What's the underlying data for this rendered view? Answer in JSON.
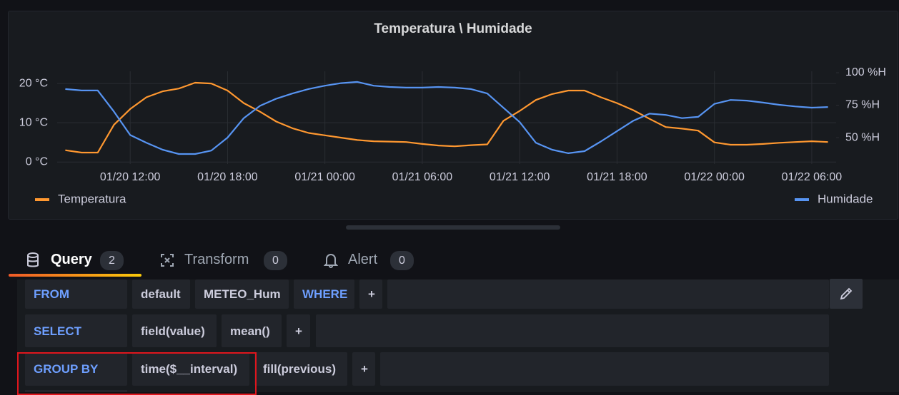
{
  "chart_data": {
    "type": "line",
    "title": "Temperatura \\ Humidade",
    "step": false,
    "x": [
      "01/20 08:00",
      "01/20 09:00",
      "01/20 10:00",
      "01/20 11:00",
      "01/20 12:00",
      "01/20 13:00",
      "01/20 14:00",
      "01/20 15:00",
      "01/20 16:00",
      "01/20 17:00",
      "01/20 18:00",
      "01/20 19:00",
      "01/20 20:00",
      "01/20 21:00",
      "01/20 22:00",
      "01/20 23:00",
      "01/21 00:00",
      "01/21 01:00",
      "01/21 02:00",
      "01/21 03:00",
      "01/21 04:00",
      "01/21 05:00",
      "01/21 06:00",
      "01/21 07:00",
      "01/21 08:00",
      "01/21 09:00",
      "01/21 10:00",
      "01/21 11:00",
      "01/21 12:00",
      "01/21 13:00",
      "01/21 14:00",
      "01/21 15:00",
      "01/21 16:00",
      "01/21 17:00",
      "01/21 18:00",
      "01/21 19:00",
      "01/21 20:00",
      "01/21 21:00",
      "01/21 22:00",
      "01/21 23:00",
      "01/22 00:00",
      "01/22 01:00",
      "01/22 02:00",
      "01/22 03:00",
      "01/22 04:00",
      "01/22 05:00",
      "01/22 06:00",
      "01/22 07:00"
    ],
    "series": [
      {
        "name": "Temperatura",
        "color": "#ff9830",
        "axis": "y",
        "values": [
          3.0,
          2.4,
          2.4,
          9.5,
          13.5,
          16.5,
          18,
          18.7,
          20.2,
          20,
          18.2,
          15,
          12.8,
          10.3,
          8.6,
          7.4,
          6.8,
          6.2,
          5.6,
          5.3,
          5.2,
          5.1,
          4.6,
          4.2,
          4.0,
          4.3,
          4.5,
          10.5,
          13,
          15.8,
          17.3,
          18.2,
          18.2,
          16.5,
          15,
          13.2,
          11,
          8.9,
          8.5,
          8,
          5,
          4.4,
          4.4,
          4.6,
          4.9,
          5.1,
          5.3,
          5.1
        ]
      },
      {
        "name": "Humidade",
        "color": "#5794f2",
        "axis": "y2",
        "values": [
          87.4,
          86.3,
          86.3,
          70,
          52,
          46,
          40.7,
          37.4,
          37.4,
          40,
          50,
          65,
          74.5,
          80,
          84,
          87.5,
          90,
          92,
          92.9,
          90,
          89,
          88.5,
          88.5,
          89,
          88.5,
          87.4,
          84,
          73,
          62,
          46,
          40.7,
          38,
          39.6,
          47,
          55,
          63,
          68.5,
          67.5,
          65,
          66,
          76,
          79,
          78.5,
          77,
          75.3,
          74,
          73.1,
          73.6
        ]
      }
    ],
    "xlim": [
      "01/20 07:30",
      "01/22 07:30"
    ],
    "xticks": [
      "01/20 12:00",
      "01/20 18:00",
      "01/21 00:00",
      "01/21 06:00",
      "01/21 12:00",
      "01/21 18:00",
      "01/22 00:00",
      "01/22 06:00"
    ],
    "ylim": [
      -0.5,
      23.1
    ],
    "yticks": [
      {
        "value": 0,
        "label": "0 °C"
      },
      {
        "value": 10,
        "label": "10 °C"
      },
      {
        "value": 20,
        "label": "20 °C"
      }
    ],
    "y2lim": [
      29.7,
      101.1
    ],
    "y2ticks": [
      {
        "value": 50,
        "label": "50 %H"
      },
      {
        "value": 75,
        "label": "75 %H"
      },
      {
        "value": 100,
        "label": "100 %H"
      }
    ],
    "grid": true,
    "legend": "bottom"
  },
  "tabs": [
    {
      "label": "Query",
      "count": 2
    },
    {
      "label": "Transform",
      "count": 0
    },
    {
      "label": "Alert",
      "count": 0
    }
  ],
  "query": {
    "from": {
      "keyword": "FROM",
      "parts": [
        "default",
        "METEO_Hum"
      ],
      "where": "WHERE",
      "add": "+"
    },
    "select": {
      "keyword": "SELECT",
      "parts": [
        "field(value)",
        "mean()"
      ],
      "add": "+"
    },
    "group_by": {
      "keyword": "GROUP BY",
      "parts": [
        "time($__interval)",
        "fill(previous)"
      ],
      "add": "+"
    }
  }
}
